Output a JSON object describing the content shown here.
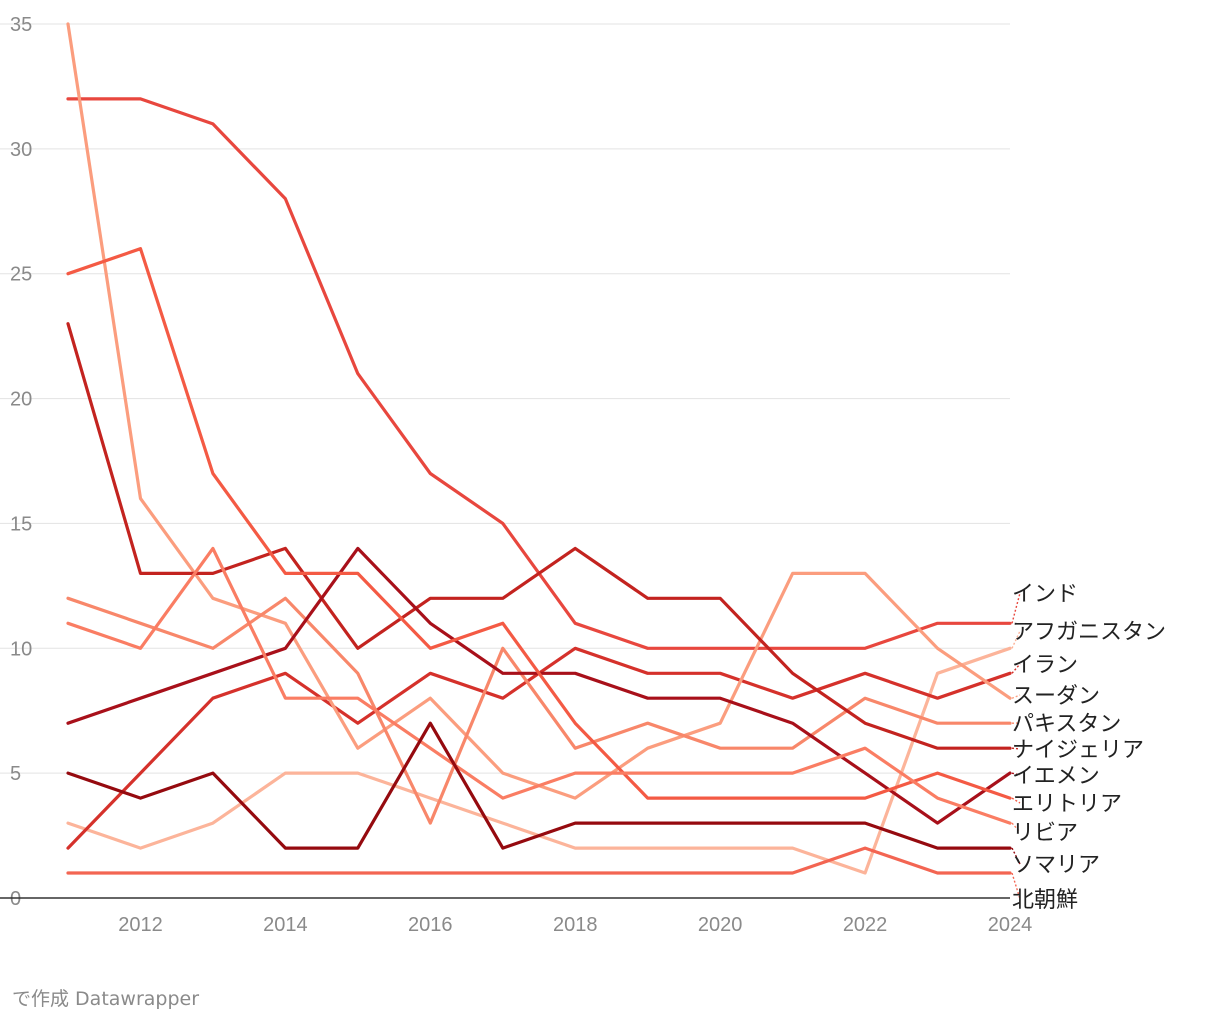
{
  "chart_data": {
    "type": "line",
    "x": [
      2011,
      2012,
      2013,
      2014,
      2015,
      2016,
      2017,
      2018,
      2019,
      2020,
      2021,
      2022,
      2023,
      2024
    ],
    "xlim": [
      2011,
      2024
    ],
    "ylim": [
      0,
      35
    ],
    "x_ticks": [
      2012,
      2014,
      2016,
      2018,
      2020,
      2022,
      2024
    ],
    "y_ticks": [
      0,
      5,
      10,
      15,
      20,
      25,
      30,
      35
    ],
    "grid": true,
    "legend": "direct labels at right end of lines",
    "series": [
      {
        "name": "インド",
        "color": "#e8473e",
        "values": [
          32,
          32,
          31,
          28,
          21,
          17,
          15,
          11,
          10,
          10,
          10,
          10,
          11,
          11
        ]
      },
      {
        "name": "アフガニスタン",
        "color": "#fcb49a",
        "values": [
          3,
          2,
          3,
          5,
          5,
          4,
          3,
          2,
          2,
          2,
          2,
          1,
          9,
          10
        ]
      },
      {
        "name": "イラン",
        "color": "#d5312b",
        "values": [
          2,
          5,
          8,
          9,
          7,
          9,
          8,
          10,
          9,
          9,
          8,
          9,
          8,
          9
        ]
      },
      {
        "name": "スーダン",
        "color": "#fb9d7e",
        "values": [
          35,
          16,
          12,
          11,
          6,
          8,
          5,
          4,
          6,
          7,
          13,
          13,
          10,
          8
        ]
      },
      {
        "name": "パキスタン",
        "color": "#f8876a",
        "values": [
          12,
          11,
          10,
          12,
          9,
          3,
          10,
          6,
          7,
          6,
          6,
          8,
          7,
          7
        ]
      },
      {
        "name": "ナイジェリア",
        "color": "#c3231f",
        "values": [
          23,
          13,
          13,
          14,
          10,
          12,
          12,
          14,
          12,
          12,
          9,
          7,
          6,
          6
        ]
      },
      {
        "name": "イエメン",
        "color": "#a8101a",
        "values": [
          7,
          8,
          9,
          10,
          14,
          11,
          9,
          9,
          8,
          8,
          7,
          5,
          3,
          5
        ]
      },
      {
        "name": "エリトリア",
        "color": "#f45a44",
        "values": [
          25,
          26,
          17,
          13,
          13,
          10,
          11,
          7,
          4,
          4,
          4,
          4,
          5,
          4
        ]
      },
      {
        "name": "リビア",
        "color": "#fa7d63",
        "values": [
          11,
          10,
          14,
          8,
          8,
          6,
          4,
          5,
          5,
          5,
          5,
          6,
          4,
          3
        ]
      },
      {
        "name": "ソマリア",
        "color": "#950a0f",
        "values": [
          5,
          4,
          5,
          2,
          2,
          7,
          2,
          3,
          3,
          3,
          3,
          3,
          2,
          2
        ]
      },
      {
        "name": "北朝鮮",
        "color": "#f36552",
        "values": [
          1,
          1,
          1,
          1,
          1,
          1,
          1,
          1,
          1,
          1,
          1,
          2,
          1,
          1
        ]
      }
    ]
  },
  "credit": "で作成 Datawrapper"
}
